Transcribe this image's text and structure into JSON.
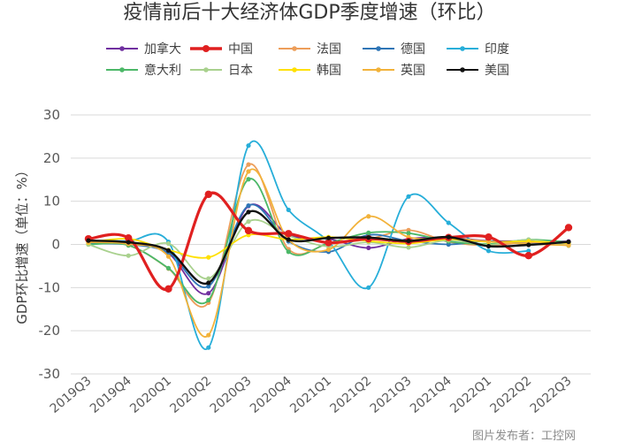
{
  "chart_data": {
    "type": "line",
    "title": "疫情前后十大经济体GDP季度增速（环比）",
    "ylabel": "GDP环比增速（单位：%）",
    "xlabel": "",
    "ylim": [
      -30,
      30
    ],
    "yticks": [
      30,
      20,
      10,
      0,
      -10,
      -20,
      -30
    ],
    "categories": [
      "2019Q3",
      "2019Q4",
      "2020Q1",
      "2020Q2",
      "2020Q3",
      "2020Q4",
      "2021Q1",
      "2021Q2",
      "2021Q3",
      "2021Q4",
      "2022Q1",
      "2022Q2",
      "2022Q3"
    ],
    "grid": true,
    "legend_position": "top",
    "series": [
      {
        "name": "加拿大",
        "color": "#7030A0",
        "values": [
          0.6,
          0.4,
          -2.1,
          -11.3,
          8.9,
          2.2,
          1.3,
          -0.8,
          1.3,
          1.6,
          0.8,
          0.8,
          0.7
        ]
      },
      {
        "name": "中国",
        "color": "#E02020",
        "values": [
          1.3,
          1.5,
          -10.3,
          11.6,
          3.2,
          2.5,
          0.4,
          1.3,
          0.7,
          1.6,
          1.7,
          -2.6,
          3.9
        ]
      },
      {
        "name": "法国",
        "color": "#ED9E5A",
        "values": [
          0.2,
          -0.2,
          -5.6,
          -13.5,
          18.5,
          -1.1,
          0.1,
          1.2,
          3.3,
          0.6,
          -0.2,
          0.5,
          0.2
        ]
      },
      {
        "name": "德国",
        "color": "#2E75B6",
        "values": [
          0.2,
          0.0,
          -1.9,
          -9.7,
          9.0,
          0.7,
          -1.7,
          2.2,
          0.8,
          0.0,
          0.8,
          0.1,
          0.4
        ]
      },
      {
        "name": "印度",
        "color": "#27AED9",
        "values": [
          0.8,
          0.8,
          0.6,
          -23.9,
          22.9,
          8.0,
          0.7,
          -10.0,
          11.1,
          5.0,
          -1.5,
          -1.5,
          null
        ]
      },
      {
        "name": "意大利",
        "color": "#4CB868",
        "values": [
          0.0,
          -0.2,
          -5.5,
          -12.9,
          15.1,
          -1.7,
          0.3,
          2.7,
          2.6,
          0.7,
          0.1,
          1.1,
          0.5
        ]
      },
      {
        "name": "日本",
        "color": "#A9D18E",
        "values": [
          0.0,
          -2.6,
          0.2,
          -7.9,
          5.3,
          2.0,
          -0.5,
          0.5,
          -0.7,
          1.0,
          -0.1,
          1.1,
          -0.3
        ]
      },
      {
        "name": "韩国",
        "color": "#FFE000",
        "values": [
          0.4,
          1.3,
          -1.3,
          -3.0,
          2.2,
          1.1,
          1.7,
          0.8,
          0.2,
          1.2,
          0.6,
          0.7,
          0.3
        ]
      },
      {
        "name": "英国",
        "color": "#F2B23A",
        "values": [
          0.5,
          0.1,
          -2.8,
          -21.0,
          16.9,
          1.1,
          -1.2,
          6.5,
          1.7,
          1.5,
          0.7,
          0.1,
          -0.2
        ]
      },
      {
        "name": "美国",
        "color": "#111111",
        "values": [
          0.9,
          0.5,
          -1.4,
          -8.9,
          7.5,
          1.1,
          1.5,
          1.6,
          0.8,
          1.7,
          -0.4,
          -0.1,
          0.6
        ]
      }
    ]
  },
  "watermark": "图片发布者：工控网"
}
